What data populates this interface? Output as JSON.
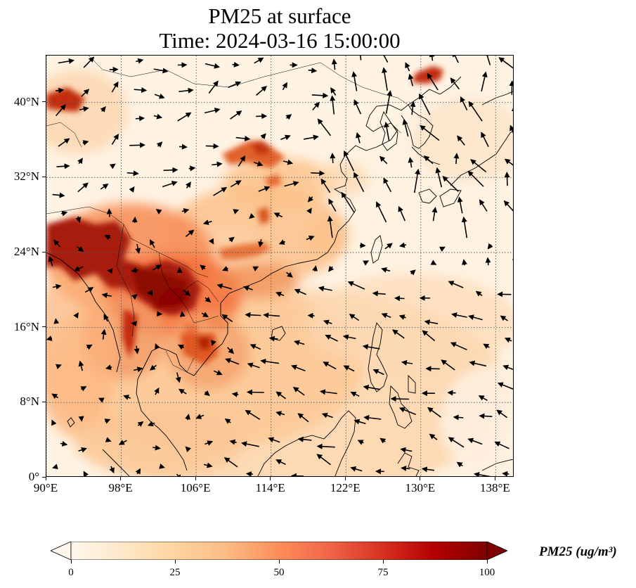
{
  "title_line1": "PM25 at surface",
  "title_line2": "Time: 2024-03-16 15:00:00",
  "map": {
    "lon_range": [
      90,
      140
    ],
    "lat_range": [
      0,
      45
    ],
    "projection": "PlateCarree",
    "gridlines": "dotted",
    "y_ticks": [
      {
        "value": 40,
        "label": "40°N"
      },
      {
        "value": 32,
        "label": "32°N"
      },
      {
        "value": 24,
        "label": "24°N"
      },
      {
        "value": 16,
        "label": "16°N"
      },
      {
        "value": 8,
        "label": "8°N"
      },
      {
        "value": 0,
        "label": "0°"
      }
    ],
    "x_ticks": [
      {
        "value": 90,
        "label": "90°E"
      },
      {
        "value": 98,
        "label": "98°E"
      },
      {
        "value": 106,
        "label": "106°E"
      },
      {
        "value": 114,
        "label": "114°E"
      },
      {
        "value": 122,
        "label": "122°E"
      },
      {
        "value": 130,
        "label": "130°E"
      },
      {
        "value": 138,
        "label": "138°E"
      }
    ],
    "field_colors": {
      "low": "#fff5eb",
      "mid": "#fdae6b",
      "high": "#d94801",
      "max": "#7f0000"
    }
  },
  "colorbar": {
    "label": "PM25 (ug/m³)",
    "min": 0,
    "max": 100,
    "extend": "both",
    "colormap": "OrRd",
    "ticks": [
      {
        "value": 0,
        "label": "0"
      },
      {
        "value": 25,
        "label": "25"
      },
      {
        "value": 50,
        "label": "50"
      },
      {
        "value": 75,
        "label": "75"
      },
      {
        "value": 100,
        "label": "100"
      }
    ]
  }
}
